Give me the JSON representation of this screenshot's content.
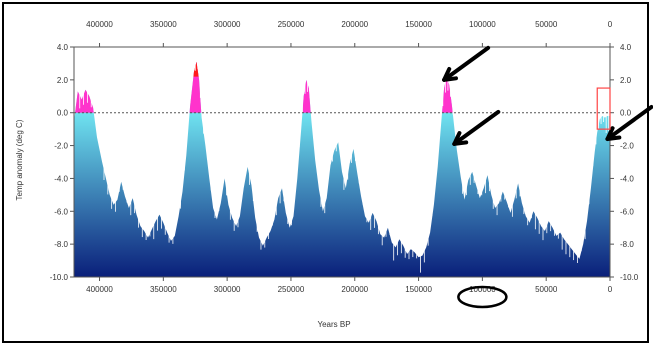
{
  "chart_data": {
    "type": "area",
    "title": "",
    "xlabel": "Years BP",
    "ylabel": "Temp anomaly (deg C)",
    "xlim": [
      420000,
      0
    ],
    "ylim": [
      -10,
      4
    ],
    "x_ticks": [
      400000,
      350000,
      300000,
      250000,
      200000,
      150000,
      100000,
      50000,
      0
    ],
    "x_tick_labels": [
      "400000",
      "350000",
      "300000",
      "250000",
      "200000",
      "150000",
      "100000",
      "50000",
      "0"
    ],
    "y_ticks": [
      4,
      2,
      0,
      -2,
      -4,
      -6,
      -8,
      -10
    ],
    "y_tick_labels_left": [
      "4.0",
      "2.0",
      "0.0",
      "-2.0",
      "-4.0",
      "-6.0",
      "-8.0",
      "-10.0"
    ],
    "y_tick_labels_right": [
      "4.0",
      "2.0",
      "0.0",
      "-2.0",
      "-4.0",
      "-6.0",
      "-8.0",
      "-10.0"
    ],
    "reference_line": 0,
    "grid": false,
    "colors": {
      "fill_top": "#6fe3f0",
      "fill_bottom": "#0a1f7a",
      "above_zero": "#ff33cc",
      "peak": "#ff1a1a",
      "annotation": "#000000",
      "box": "#ff4444"
    },
    "series": [
      {
        "x": [
          420000,
          417000,
          414000,
          411000,
          408000,
          405000,
          402000,
          398000,
          395000,
          392000,
          389000,
          386000,
          383000,
          380000,
          377000,
          374000,
          371000,
          368000,
          365000,
          362000,
          359000,
          356000,
          353000,
          350000,
          347000,
          344000,
          341000,
          338000,
          335000,
          332000,
          329000,
          326000,
          324000,
          322000,
          320000,
          317000,
          314000,
          311000,
          308000,
          305000,
          302000,
          299000,
          296000,
          293000,
          290000,
          287000,
          284000,
          281000,
          278000,
          275000,
          272000,
          269000,
          266000,
          263000,
          260000,
          257000,
          254000,
          251000,
          248000,
          245000,
          242000,
          240000,
          238000,
          236000,
          234000,
          231000,
          228000,
          225000,
          222000,
          219000,
          216000,
          213000,
          210000,
          207000,
          204000,
          201000,
          198000,
          195000,
          192000,
          189000,
          186000,
          183000,
          180000,
          177000,
          174000,
          171000,
          168000,
          165000,
          162000,
          159000,
          156000,
          153000,
          150000,
          147000,
          144000,
          141000,
          138000,
          135000,
          132000,
          130000,
          128000,
          126000,
          124000,
          122000,
          120000,
          117000,
          114000,
          111000,
          108000,
          105000,
          102000,
          99000,
          96000,
          93000,
          90000,
          87000,
          84000,
          81000,
          78000,
          75000,
          72000,
          69000,
          66000,
          63000,
          60000,
          57000,
          54000,
          51000,
          48000,
          45000,
          42000,
          39000,
          36000,
          33000,
          30000,
          27000,
          24000,
          21000,
          18000,
          15000,
          12000,
          10000,
          8000,
          6000,
          4000,
          2000,
          0
        ],
        "y": [
          -0.5,
          1.3,
          0.8,
          1.4,
          1.0,
          0.3,
          -1.5,
          -3.0,
          -4.0,
          -5.0,
          -5.6,
          -5.3,
          -4.2,
          -5.1,
          -5.8,
          -5.2,
          -6.2,
          -6.9,
          -7.2,
          -7.6,
          -7.1,
          -6.6,
          -6.2,
          -6.7,
          -7.3,
          -7.8,
          -7.5,
          -6.3,
          -4.8,
          -2.6,
          0.4,
          2.5,
          3.1,
          2.0,
          -0.3,
          -2.0,
          -4.0,
          -5.8,
          -6.5,
          -5.5,
          -4.0,
          -5.6,
          -6.4,
          -6.9,
          -6.3,
          -4.6,
          -3.3,
          -4.4,
          -6.4,
          -7.6,
          -8.1,
          -7.6,
          -7.2,
          -6.5,
          -5.2,
          -4.6,
          -6.1,
          -7.0,
          -6.3,
          -4.0,
          -1.0,
          1.0,
          2.0,
          1.5,
          -0.5,
          -2.9,
          -4.7,
          -6.0,
          -5.2,
          -3.2,
          -2.3,
          -1.8,
          -3.6,
          -4.6,
          -3.1,
          -2.2,
          -3.7,
          -5.1,
          -6.3,
          -6.7,
          -6.1,
          -6.6,
          -7.4,
          -7.6,
          -7.0,
          -7.9,
          -8.2,
          -7.7,
          -8.1,
          -8.6,
          -8.3,
          -8.5,
          -8.8,
          -8.7,
          -8.2,
          -7.3,
          -5.6,
          -3.3,
          -0.4,
          1.5,
          2.2,
          1.7,
          0.5,
          -0.9,
          -2.3,
          -3.9,
          -5.3,
          -4.1,
          -3.6,
          -4.4,
          -5.2,
          -4.6,
          -3.8,
          -5.0,
          -5.8,
          -5.5,
          -4.8,
          -5.4,
          -6.1,
          -5.3,
          -4.3,
          -5.5,
          -6.3,
          -6.7,
          -6.0,
          -6.4,
          -6.9,
          -7.2,
          -6.6,
          -7.0,
          -7.5,
          -7.3,
          -7.7,
          -8.0,
          -8.3,
          -8.6,
          -8.9,
          -8.0,
          -6.6,
          -4.6,
          -2.4,
          -1.2,
          -0.4,
          -0.2,
          -0.3,
          -0.2,
          -0.2
        ]
      }
    ],
    "annotations": [
      {
        "type": "arrow",
        "tip_x": 130000,
        "tip_y": 2.0
      },
      {
        "type": "arrow",
        "tip_x": 122000,
        "tip_y": -1.9
      },
      {
        "type": "arrow",
        "tip_x": 2000,
        "tip_y": -1.6
      },
      {
        "type": "box",
        "x0": 10000,
        "x1": 0,
        "y0": -1.0,
        "y1": 1.5
      },
      {
        "type": "circle-around-tick",
        "x": 100000
      }
    ]
  }
}
